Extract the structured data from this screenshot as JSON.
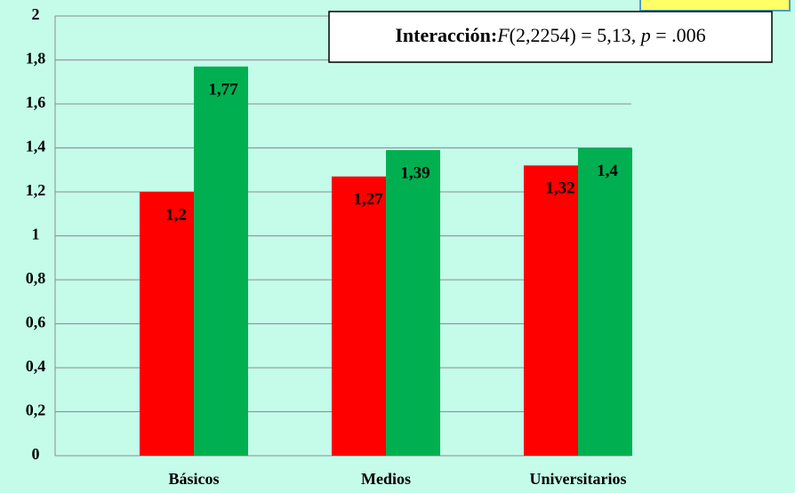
{
  "chart_data": {
    "type": "bar",
    "categories": [
      "Básicos",
      "Medios",
      "Universitarios"
    ],
    "series": [
      {
        "color": "#ff0000",
        "values": [
          1.2,
          1.27,
          1.32
        ],
        "value_labels": [
          "1,2",
          "1,27",
          "1,32"
        ]
      },
      {
        "color": "#00b050",
        "values": [
          1.77,
          1.39,
          1.4
        ],
        "value_labels": [
          "1,77",
          "1,39",
          "1,4"
        ]
      }
    ],
    "ylim": [
      0,
      2
    ],
    "yticks": [
      0,
      {
        "value": 0.2,
        "label": "0,2"
      },
      {
        "value": 0.4,
        "label": "0,4"
      },
      {
        "value": 0.6,
        "label": "0,6"
      },
      {
        "value": 0.8,
        "label": "0,8"
      },
      1,
      {
        "value": 1.2,
        "label": "1,2"
      },
      {
        "value": 1.4,
        "label": "1,4"
      },
      {
        "value": 1.6,
        "label": "1,6"
      },
      {
        "value": 1.8,
        "label": "1,8"
      },
      2
    ],
    "grid": true,
    "annotation": [
      "Interacción:",
      "F",
      "(2,2254) = 5,13, ",
      "p",
      " = .006"
    ]
  }
}
